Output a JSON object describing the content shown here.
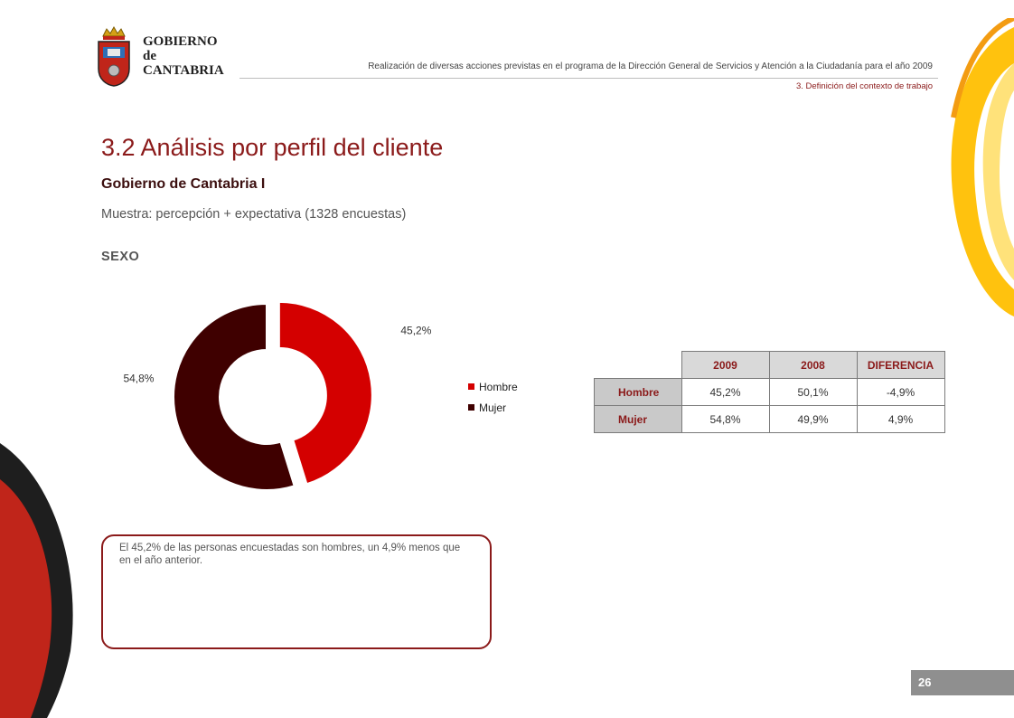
{
  "header": {
    "logo_text": [
      "GOBIERNO",
      "de",
      "CANTABRIA"
    ],
    "subtitle": "Realización de diversas acciones previstas en el programa de la Dirección General de Servicios y Atención a la Ciudadanía para el año 2009",
    "section_label": "3. Definición del contexto de trabajo"
  },
  "main": {
    "title": "3.2 Análisis por perfil del cliente",
    "entity": "Gobierno de Cantabria I",
    "sample": "Muestra: percepción + expectativa (1328 encuestas)",
    "chart_heading": "SEXO"
  },
  "chart_data": {
    "type": "pie",
    "variant": "donut",
    "title": "",
    "labels": [
      "Hombre",
      "Mujer"
    ],
    "values": [
      45.2,
      54.8
    ],
    "value_labels": [
      "45,2%",
      "54,8%"
    ],
    "colors": [
      "#d40000",
      "#3f0000"
    ],
    "legend": "right"
  },
  "table": {
    "columns": [
      "2009",
      "2008",
      "DIFERENCIA"
    ],
    "rows": [
      {
        "label": "Hombre",
        "cells": [
          "45,2%",
          "50,1%",
          "-4,9%"
        ]
      },
      {
        "label": "Mujer",
        "cells": [
          "54,8%",
          "49,9%",
          "4,9%"
        ]
      }
    ]
  },
  "comment": "El 45,2% de las personas encuestadas son hombres, un 4,9% menos que en el año anterior.",
  "footer": {
    "page_number": "26"
  },
  "colors": {
    "accent": "#8b1a1a",
    "hombre": "#d40000",
    "mujer": "#3f0000"
  }
}
